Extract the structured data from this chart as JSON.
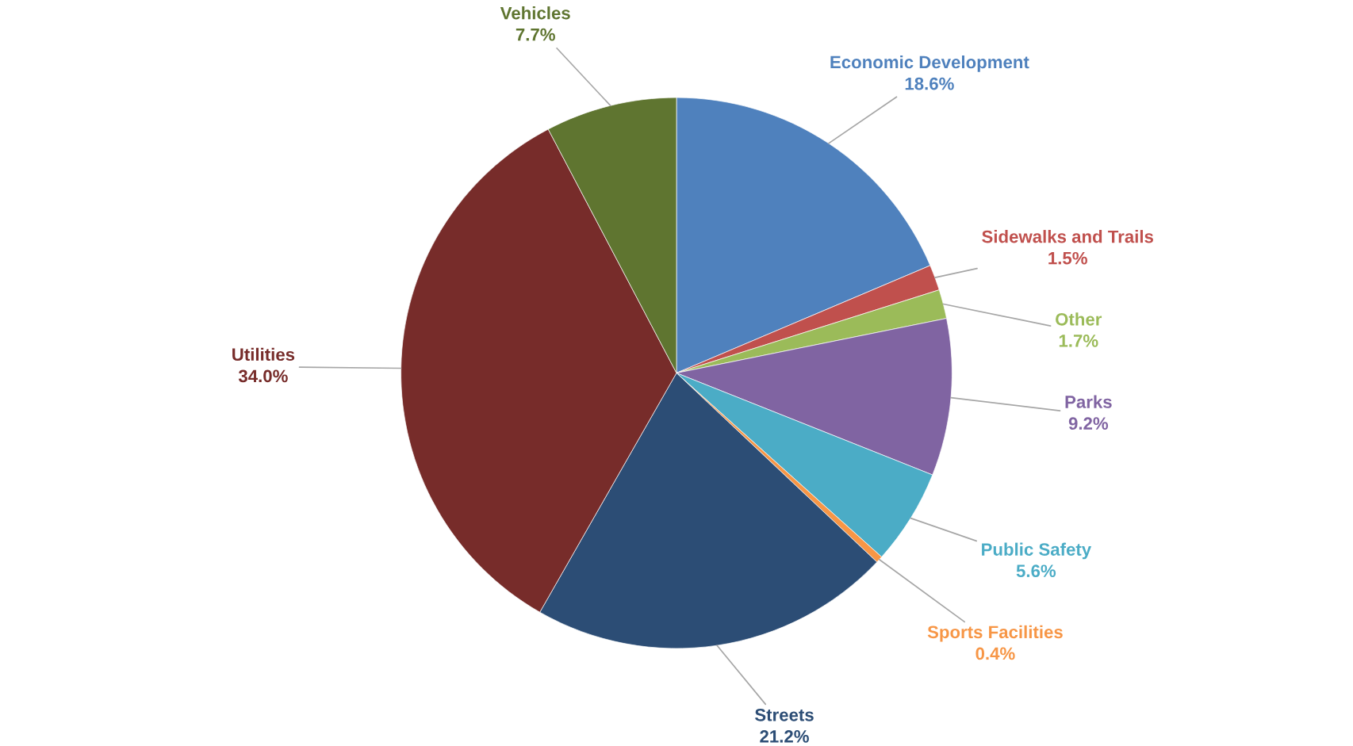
{
  "chart_data": {
    "type": "pie",
    "categories": [
      "Economic Development",
      "Sidewalks and Trails",
      "Other",
      "Parks",
      "Public Safety",
      "Sports Facilities",
      "Streets",
      "Utilities",
      "Vehicles"
    ],
    "values": [
      18.6,
      1.5,
      1.7,
      9.2,
      5.6,
      0.4,
      21.2,
      34.0,
      7.7
    ],
    "value_labels": [
      "18.6%",
      "1.5%",
      "1.7%",
      "9.2%",
      "5.6%",
      "0.4%",
      "21.2%",
      "34.0%",
      "7.7%"
    ],
    "colors": [
      "#4f81bd",
      "#c0504d",
      "#9bbb59",
      "#8064a2",
      "#4bacc6",
      "#f79646",
      "#2c4d75",
      "#772c2a",
      "#5f7530"
    ],
    "legend": false
  }
}
